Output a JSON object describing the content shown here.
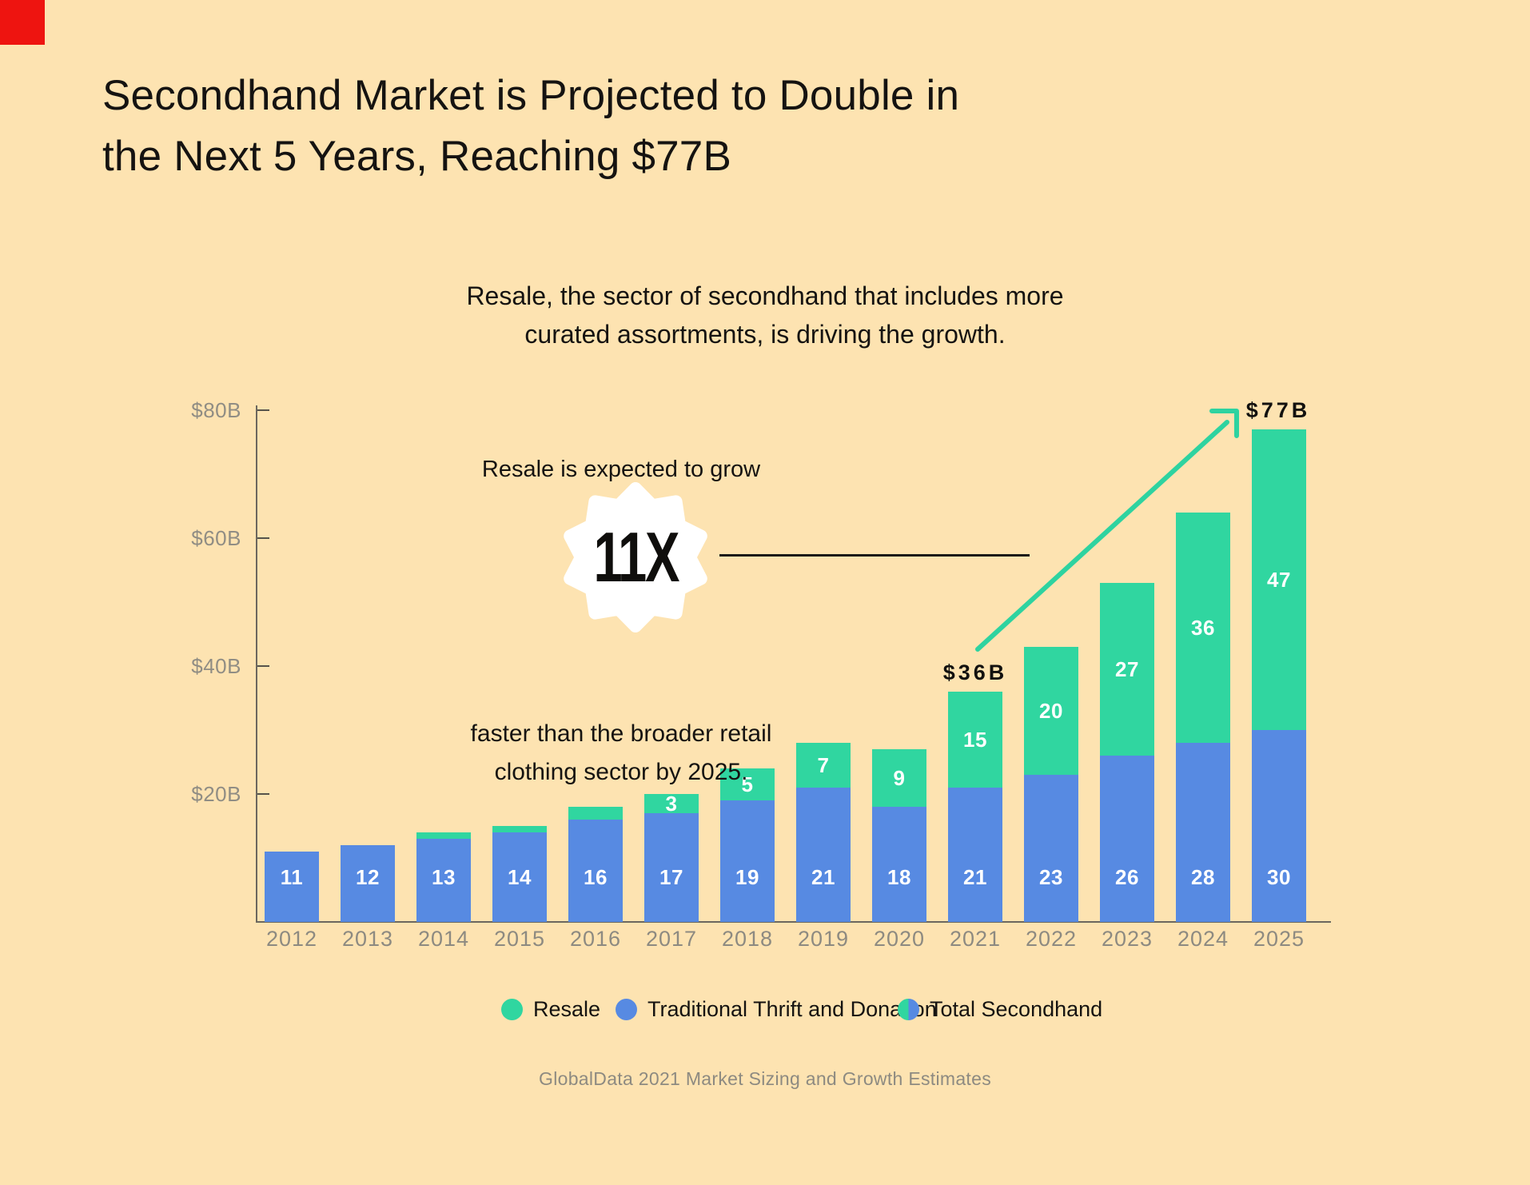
{
  "title": {
    "line1": "Secondhand Market is Projected to Double in",
    "line2": "the Next 5 Years, Reaching $77B"
  },
  "subtitle": {
    "line1": "Resale, the sector of secondhand that includes more",
    "line2": "curated assortments, is driving the growth."
  },
  "callout": {
    "intro": "Resale is expected to grow",
    "multiplier": "11X",
    "detail_line1": "faster than the broader retail",
    "detail_line2": "clothing sector by 2025."
  },
  "annotations": {
    "total_2021": "$36B",
    "total_2025": "$77B"
  },
  "chart_data": {
    "type": "bar",
    "subtype": "stacked",
    "title": "Secondhand Market is Projected to Double in the Next 5 Years, Reaching $77B",
    "categories": [
      "2012",
      "2013",
      "2014",
      "2015",
      "2016",
      "2017",
      "2018",
      "2019",
      "2020",
      "2021",
      "2022",
      "2023",
      "2024",
      "2025"
    ],
    "series": [
      {
        "name": "Traditional Thrift and Donation",
        "color": "#578ae2",
        "values": [
          11,
          12,
          13,
          14,
          16,
          17,
          19,
          21,
          18,
          21,
          23,
          26,
          28,
          30
        ]
      },
      {
        "name": "Resale",
        "color": "#30d6a0",
        "values": [
          0,
          0,
          1,
          1,
          2,
          3,
          5,
          7,
          9,
          15,
          20,
          27,
          36,
          47
        ]
      }
    ],
    "totals_called_out": {
      "2021": 36,
      "2025": 77
    },
    "ylabel": "",
    "xlabel": "",
    "ylim": [
      0,
      80
    ],
    "yticks": [
      {
        "value": 20,
        "label": "$20B"
      },
      {
        "value": 40,
        "label": "$40B"
      },
      {
        "value": 60,
        "label": "$60B"
      },
      {
        "value": 80,
        "label": "$80B"
      }
    ],
    "value_labels": "thrift values always shown in white; resale values shown from 2017 onward",
    "resale_label_min": 3,
    "grid": false,
    "legend_position": "bottom"
  },
  "legend": {
    "items": [
      {
        "label": "Resale",
        "color": "#30d6a0"
      },
      {
        "label": "Traditional Thrift and Donation",
        "color": "#578ae2"
      },
      {
        "label": "Total Secondhand",
        "color_left": "#30d6a0",
        "color_right": "#578ae2"
      }
    ]
  },
  "source": "GlobalData 2021 Market Sizing and Growth Estimates",
  "colors": {
    "background": "#fde3b1",
    "bar_blue": "#578ae2",
    "bar_green": "#30d6a0",
    "arrow_green": "#2ed3a0",
    "axis_gray": "#6b675e",
    "tick_label_gray": "#908d84",
    "text_black": "#151311",
    "marker_red": "#ee1410"
  }
}
